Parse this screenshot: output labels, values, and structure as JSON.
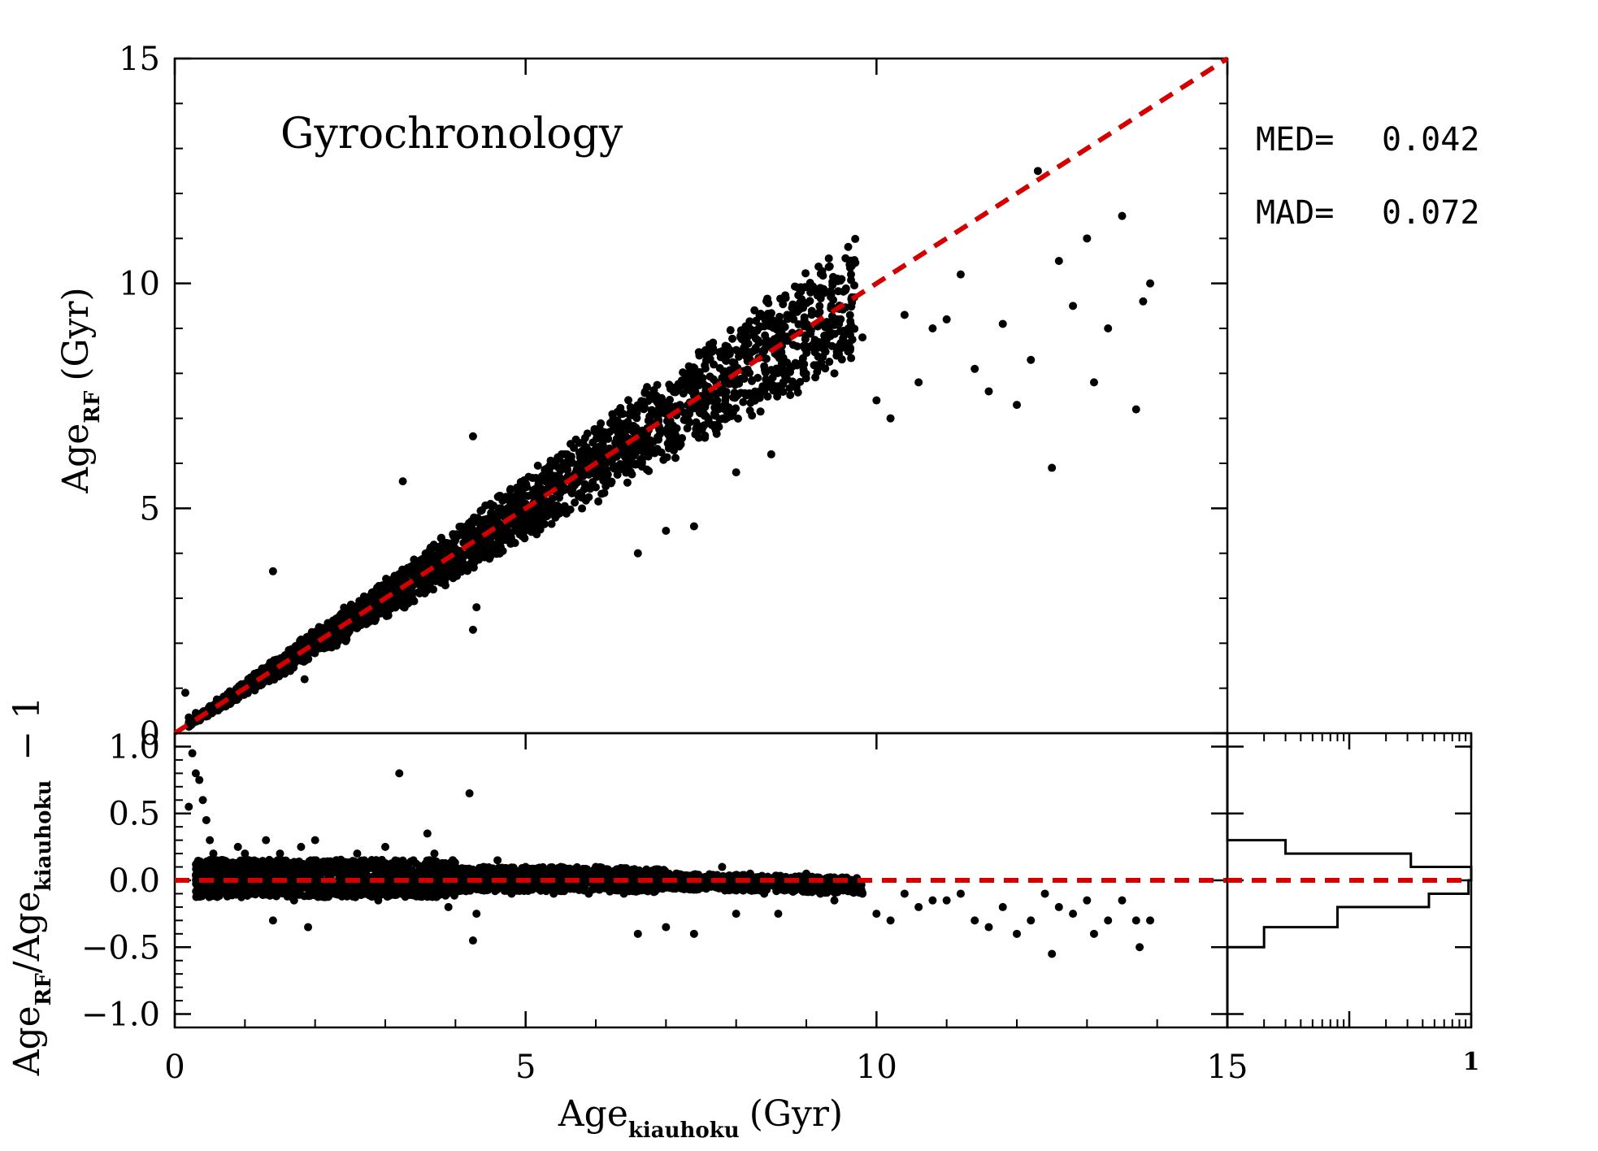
{
  "chart_data": [
    {
      "id": "main",
      "type": "scatter",
      "title": "Gyrochronology",
      "xlabel": "Age",
      "xlabel_subscript": "kiauhoku",
      "xlabel_unit": "(Gyr)",
      "ylabel": "Age",
      "ylabel_subscript": "RF",
      "ylabel_unit": "(Gyr)",
      "xlim": [
        0,
        15
      ],
      "ylim": [
        0,
        15
      ],
      "x_ticks": [
        0,
        5,
        10,
        15
      ],
      "y_ticks": [
        0,
        5,
        10,
        15
      ],
      "x_tick_labels": [
        "0",
        "5",
        "10",
        "15"
      ],
      "y_tick_labels": [
        "0",
        "5",
        "10",
        "15"
      ],
      "reference_line": {
        "style": "dashed",
        "color": "#d40000",
        "from": [
          0,
          0
        ],
        "to": [
          15,
          15
        ]
      },
      "marker_color": "#000000",
      "stats": {
        "med_label": "MED=",
        "med": "0.042",
        "mad_label": "MAD=",
        "mad": "0.072"
      },
      "points": [
        [
          0.15,
          0.9
        ],
        [
          0.2,
          0.35
        ],
        [
          0.3,
          0.45
        ],
        [
          0.5,
          0.6
        ],
        [
          0.6,
          0.75
        ],
        [
          0.8,
          0.9
        ],
        [
          1.0,
          1.1
        ],
        [
          1.1,
          1.05
        ],
        [
          1.2,
          1.3
        ],
        [
          1.3,
          1.2
        ],
        [
          1.4,
          3.6
        ],
        [
          1.45,
          1.5
        ],
        [
          1.5,
          1.35
        ],
        [
          1.6,
          1.7
        ],
        [
          1.7,
          1.6
        ],
        [
          1.8,
          1.9
        ],
        [
          1.9,
          1.75
        ],
        [
          1.85,
          1.2
        ],
        [
          2.0,
          2.1
        ],
        [
          2.1,
          1.95
        ],
        [
          2.2,
          2.3
        ],
        [
          2.3,
          2.15
        ],
        [
          2.4,
          2.5
        ],
        [
          2.5,
          2.35
        ],
        [
          2.6,
          2.7
        ],
        [
          2.7,
          2.55
        ],
        [
          2.8,
          2.9
        ],
        [
          2.9,
          2.75
        ],
        [
          3.0,
          3.1
        ],
        [
          3.1,
          2.95
        ],
        [
          3.2,
          3.3
        ],
        [
          3.25,
          5.6
        ],
        [
          3.3,
          3.15
        ],
        [
          3.4,
          3.5
        ],
        [
          3.5,
          3.35
        ],
        [
          3.6,
          3.7
        ],
        [
          3.7,
          3.55
        ],
        [
          3.8,
          3.9
        ],
        [
          3.9,
          3.75
        ],
        [
          4.0,
          4.1
        ],
        [
          4.1,
          3.95
        ],
        [
          4.2,
          4.3
        ],
        [
          4.25,
          6.6
        ],
        [
          4.25,
          2.3
        ],
        [
          4.3,
          2.8
        ],
        [
          4.3,
          4.15
        ],
        [
          4.4,
          4.5
        ],
        [
          4.5,
          4.35
        ],
        [
          4.6,
          4.7
        ],
        [
          4.7,
          4.55
        ],
        [
          4.8,
          4.9
        ],
        [
          4.9,
          4.75
        ],
        [
          5.0,
          5.1
        ],
        [
          5.1,
          4.95
        ],
        [
          5.2,
          5.3
        ],
        [
          5.3,
          5.15
        ],
        [
          5.4,
          5.5
        ],
        [
          5.5,
          5.35
        ],
        [
          5.6,
          5.7
        ],
        [
          5.7,
          5.55
        ],
        [
          5.8,
          5.9
        ],
        [
          5.9,
          5.75
        ],
        [
          6.0,
          6.1
        ],
        [
          6.1,
          5.95
        ],
        [
          6.2,
          6.3
        ],
        [
          6.3,
          6.15
        ],
        [
          6.4,
          6.5
        ],
        [
          6.5,
          6.35
        ],
        [
          6.6,
          4.0
        ],
        [
          6.6,
          6.7
        ],
        [
          6.7,
          6.55
        ],
        [
          6.8,
          6.9
        ],
        [
          7.0,
          4.5
        ],
        [
          7.0,
          7.1
        ],
        [
          7.2,
          7.3
        ],
        [
          7.4,
          7.5
        ],
        [
          7.4,
          4.6
        ],
        [
          7.6,
          7.7
        ],
        [
          7.8,
          7.9
        ],
        [
          8.0,
          8.1
        ],
        [
          8.0,
          5.8
        ],
        [
          8.2,
          8.3
        ],
        [
          8.4,
          8.5
        ],
        [
          8.5,
          6.2
        ],
        [
          8.6,
          8.7
        ],
        [
          8.8,
          8.9
        ],
        [
          9.0,
          9.1
        ],
        [
          9.2,
          9.9
        ],
        [
          9.4,
          8.0
        ],
        [
          9.6,
          9.0
        ],
        [
          9.8,
          8.8
        ],
        [
          10.0,
          7.4
        ],
        [
          10.2,
          7.0
        ],
        [
          10.4,
          9.3
        ],
        [
          10.6,
          7.8
        ],
        [
          10.8,
          9.0
        ],
        [
          11.0,
          9.2
        ],
        [
          11.2,
          10.2
        ],
        [
          11.4,
          8.1
        ],
        [
          11.6,
          7.6
        ],
        [
          11.8,
          9.1
        ],
        [
          12.0,
          7.3
        ],
        [
          12.2,
          8.3
        ],
        [
          12.3,
          12.5
        ],
        [
          12.5,
          5.9
        ],
        [
          12.6,
          10.5
        ],
        [
          12.8,
          9.5
        ],
        [
          13.0,
          11.0
        ],
        [
          13.1,
          7.8
        ],
        [
          13.3,
          9.0
        ],
        [
          13.5,
          11.5
        ],
        [
          13.7,
          7.2
        ],
        [
          13.8,
          9.6
        ],
        [
          13.9,
          10.0
        ]
      ]
    },
    {
      "id": "residual",
      "type": "scatter",
      "ylabel": "Age",
      "ylabel_sub1": "RF",
      "ylabel_mid": "/Age",
      "ylabel_sub2": "kiauhoku",
      "ylabel_tail": "− 1",
      "xlim": [
        0,
        15
      ],
      "ylim": [
        -1.1,
        1.1
      ],
      "y_ticks": [
        -1.0,
        -0.5,
        0.0,
        0.5,
        1.0
      ],
      "y_tick_labels": [
        "−1.0",
        "−0.5",
        "0.0",
        "0.5",
        "1.0"
      ],
      "reference_line": {
        "style": "dashed",
        "color": "#d40000",
        "y": 0
      },
      "points": [
        [
          0.2,
          0.55
        ],
        [
          0.25,
          0.95
        ],
        [
          0.3,
          0.8
        ],
        [
          0.35,
          0.75
        ],
        [
          0.4,
          0.6
        ],
        [
          0.45,
          0.45
        ],
        [
          0.5,
          0.3
        ],
        [
          0.55,
          0.2
        ],
        [
          0.6,
          0.15
        ],
        [
          0.7,
          0.1
        ],
        [
          0.8,
          -0.05
        ],
        [
          0.9,
          0.25
        ],
        [
          1.0,
          0.2
        ],
        [
          1.1,
          -0.1
        ],
        [
          1.2,
          0.1
        ],
        [
          1.3,
          0.3
        ],
        [
          1.4,
          -0.3
        ],
        [
          1.5,
          0.2
        ],
        [
          1.6,
          0.05
        ],
        [
          1.7,
          -0.15
        ],
        [
          1.8,
          0.25
        ],
        [
          1.9,
          -0.35
        ],
        [
          2.0,
          0.3
        ],
        [
          2.1,
          0.1
        ],
        [
          2.2,
          -0.1
        ],
        [
          2.3,
          0.15
        ],
        [
          2.4,
          0.05
        ],
        [
          2.5,
          -0.05
        ],
        [
          2.6,
          0.2
        ],
        [
          2.7,
          0.15
        ],
        [
          2.8,
          0.1
        ],
        [
          2.9,
          -0.15
        ],
        [
          3.0,
          0.25
        ],
        [
          3.1,
          0.1
        ],
        [
          3.2,
          0.8
        ],
        [
          3.3,
          0.05
        ],
        [
          3.4,
          0.15
        ],
        [
          3.5,
          -0.1
        ],
        [
          3.6,
          0.35
        ],
        [
          3.7,
          0.2
        ],
        [
          3.8,
          0.05
        ],
        [
          3.9,
          -0.2
        ],
        [
          4.0,
          0.1
        ],
        [
          4.1,
          0.05
        ],
        [
          4.2,
          0.65
        ],
        [
          4.25,
          -0.45
        ],
        [
          4.3,
          -0.25
        ],
        [
          4.4,
          0.1
        ],
        [
          4.5,
          -0.05
        ],
        [
          4.6,
          0.15
        ],
        [
          4.7,
          0.0
        ],
        [
          4.8,
          -0.1
        ],
        [
          4.9,
          0.05
        ],
        [
          5.0,
          0.1
        ],
        [
          5.1,
          -0.05
        ],
        [
          5.2,
          0.0
        ],
        [
          5.3,
          0.05
        ],
        [
          5.4,
          -0.1
        ],
        [
          5.5,
          0.1
        ],
        [
          5.6,
          0.0
        ],
        [
          5.7,
          -0.05
        ],
        [
          5.8,
          0.05
        ],
        [
          5.9,
          -0.1
        ],
        [
          6.0,
          0.1
        ],
        [
          6.1,
          0.0
        ],
        [
          6.2,
          -0.05
        ],
        [
          6.3,
          0.05
        ],
        [
          6.4,
          -0.1
        ],
        [
          6.5,
          0.0
        ],
        [
          6.6,
          -0.4
        ],
        [
          6.7,
          0.05
        ],
        [
          6.8,
          -0.05
        ],
        [
          7.0,
          -0.35
        ],
        [
          7.2,
          0.0
        ],
        [
          7.4,
          -0.4
        ],
        [
          7.6,
          0.0
        ],
        [
          7.8,
          0.1
        ],
        [
          8.0,
          -0.25
        ],
        [
          8.2,
          0.05
        ],
        [
          8.4,
          -0.1
        ],
        [
          8.6,
          -0.25
        ],
        [
          8.8,
          0.0
        ],
        [
          9.0,
          0.05
        ],
        [
          9.2,
          -0.1
        ],
        [
          9.4,
          -0.15
        ],
        [
          9.6,
          -0.05
        ],
        [
          9.8,
          -0.1
        ],
        [
          10.0,
          -0.25
        ],
        [
          10.2,
          -0.3
        ],
        [
          10.4,
          -0.1
        ],
        [
          10.6,
          -0.2
        ],
        [
          10.8,
          -0.15
        ],
        [
          11.0,
          -0.15
        ],
        [
          11.2,
          -0.1
        ],
        [
          11.4,
          -0.3
        ],
        [
          11.6,
          -0.35
        ],
        [
          11.8,
          -0.2
        ],
        [
          12.0,
          -0.4
        ],
        [
          12.2,
          -0.3
        ],
        [
          12.4,
          -0.1
        ],
        [
          12.5,
          -0.55
        ],
        [
          12.6,
          -0.2
        ],
        [
          12.8,
          -0.25
        ],
        [
          13.0,
          -0.15
        ],
        [
          13.1,
          -0.4
        ],
        [
          13.3,
          -0.3
        ],
        [
          13.5,
          -0.15
        ],
        [
          13.7,
          -0.3
        ],
        [
          13.75,
          -0.5
        ],
        [
          13.9,
          -0.3
        ]
      ]
    },
    {
      "id": "histogram",
      "type": "histogram",
      "orientation": "horizontal",
      "xlim": [
        0,
        1
      ],
      "x_tick_labels": [
        "1"
      ],
      "ylim": [
        -1.1,
        1.1
      ],
      "reference_line": {
        "style": "dashed",
        "color": "#d40000",
        "y": 0
      },
      "steps": [
        {
          "y0": -1.1,
          "y1": -0.5,
          "value": 0.0
        },
        {
          "y0": -0.5,
          "y1": -0.35,
          "value": 0.02
        },
        {
          "y0": -0.35,
          "y1": -0.2,
          "value": 0.08
        },
        {
          "y0": -0.2,
          "y1": -0.1,
          "value": 0.45
        },
        {
          "y0": -0.1,
          "y1": 0.0,
          "value": 0.95
        },
        {
          "y0": 0.0,
          "y1": 0.1,
          "value": 1.0
        },
        {
          "y0": 0.1,
          "y1": 0.2,
          "value": 0.32
        },
        {
          "y0": 0.2,
          "y1": 0.3,
          "value": 0.03
        },
        {
          "y0": 0.3,
          "y1": 0.55,
          "value": 0.01
        },
        {
          "y0": 0.55,
          "y1": 1.1,
          "value": 0.0
        }
      ]
    }
  ]
}
